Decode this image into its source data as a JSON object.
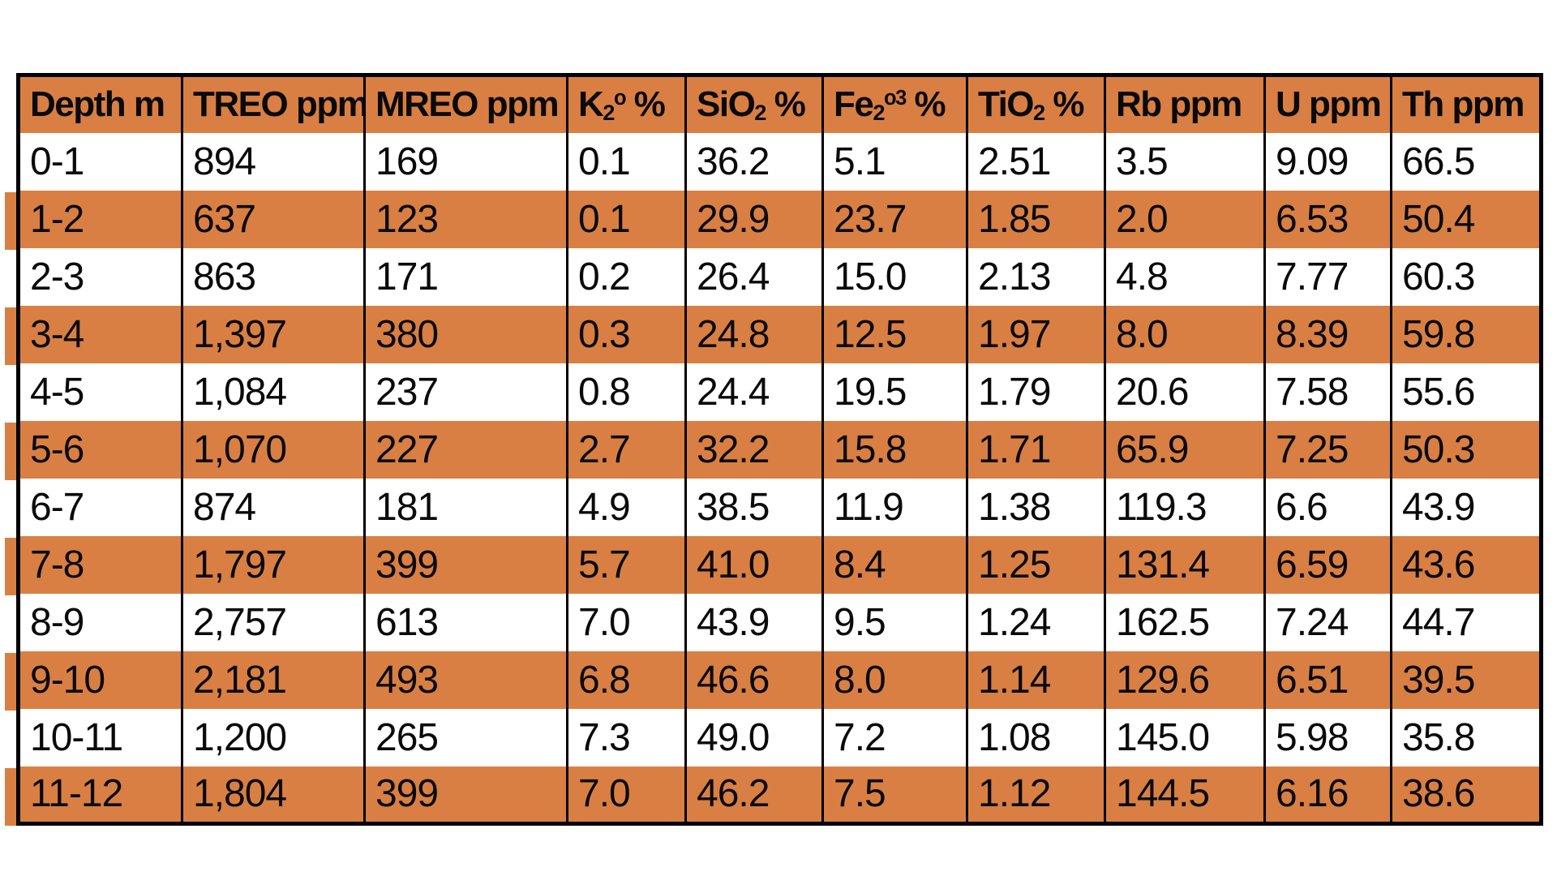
{
  "colors": {
    "stripe_orange": "#D97F43",
    "row_white": "#FFFFFF",
    "border_black": "#000000"
  },
  "table": {
    "columns": [
      {
        "key": "depth",
        "label": "Depth m",
        "parts": [
          {
            "t": "Depth m"
          }
        ]
      },
      {
        "key": "treo",
        "label": "TREO ppm",
        "parts": [
          {
            "t": "TREO ppm"
          }
        ]
      },
      {
        "key": "mreo",
        "label": "MREO ppm",
        "parts": [
          {
            "t": "MREO ppm"
          }
        ]
      },
      {
        "key": "k2o",
        "label": "K2o %",
        "parts": [
          {
            "t": "K"
          },
          {
            "sub": "2"
          },
          {
            "sup": "o"
          },
          {
            "t": " %"
          }
        ]
      },
      {
        "key": "sio2",
        "label": "SiO2 %",
        "parts": [
          {
            "t": "SiO"
          },
          {
            "sub": "2"
          },
          {
            "t": " %"
          }
        ]
      },
      {
        "key": "fe2o3",
        "label": "Fe2o3 %",
        "parts": [
          {
            "t": "Fe"
          },
          {
            "sub": "2"
          },
          {
            "sup": "o3"
          },
          {
            "t": " %"
          }
        ]
      },
      {
        "key": "tio2",
        "label": "TiO2 %",
        "parts": [
          {
            "t": "TiO"
          },
          {
            "sub": "2"
          },
          {
            "t": " %"
          }
        ]
      },
      {
        "key": "rb",
        "label": "Rb ppm",
        "parts": [
          {
            "t": "Rb ppm"
          }
        ]
      },
      {
        "key": "u",
        "label": "U ppm",
        "parts": [
          {
            "t": "U ppm"
          }
        ]
      },
      {
        "key": "th",
        "label": "Th ppm",
        "parts": [
          {
            "t": "Th ppm"
          }
        ]
      }
    ],
    "rows": [
      [
        "0-1",
        "894",
        "169",
        "0.1",
        "36.2",
        "5.1",
        "2.51",
        "3.5",
        "9.09",
        "66.5"
      ],
      [
        "1-2",
        "637",
        "123",
        "0.1",
        "29.9",
        "23.7",
        "1.85",
        "2.0",
        "6.53",
        "50.4"
      ],
      [
        "2-3",
        "863",
        "171",
        "0.2",
        "26.4",
        "15.0",
        "2.13",
        "4.8",
        "7.77",
        "60.3"
      ],
      [
        "3-4",
        "1,397",
        "380",
        "0.3",
        "24.8",
        "12.5",
        "1.97",
        "8.0",
        "8.39",
        "59.8"
      ],
      [
        "4-5",
        "1,084",
        "237",
        "0.8",
        "24.4",
        "19.5",
        "1.79",
        "20.6",
        "7.58",
        "55.6"
      ],
      [
        "5-6",
        "1,070",
        "227",
        "2.7",
        "32.2",
        "15.8",
        "1.71",
        "65.9",
        "7.25",
        "50.3"
      ],
      [
        "6-7",
        "874",
        "181",
        "4.9",
        "38.5",
        "11.9",
        "1.38",
        "119.3",
        "6.6",
        "43.9"
      ],
      [
        "7-8",
        "1,797",
        "399",
        "5.7",
        "41.0",
        "8.4",
        "1.25",
        "131.4",
        "6.59",
        "43.6"
      ],
      [
        "8-9",
        "2,757",
        "613",
        "7.0",
        "43.9",
        "9.5",
        "1.24",
        "162.5",
        "7.24",
        "44.7"
      ],
      [
        "9-10",
        "2,181",
        "493",
        "6.8",
        "46.6",
        "8.0",
        "1.14",
        "129.6",
        "6.51",
        "39.5"
      ],
      [
        "10-11",
        "1,200",
        "265",
        "7.3",
        "49.0",
        "7.2",
        "1.08",
        "145.0",
        "5.98",
        "35.8"
      ],
      [
        "11-12",
        "1,804",
        "399",
        "7.0",
        "46.2",
        "7.5",
        "1.12",
        "144.5",
        "6.16",
        "38.6"
      ]
    ]
  }
}
